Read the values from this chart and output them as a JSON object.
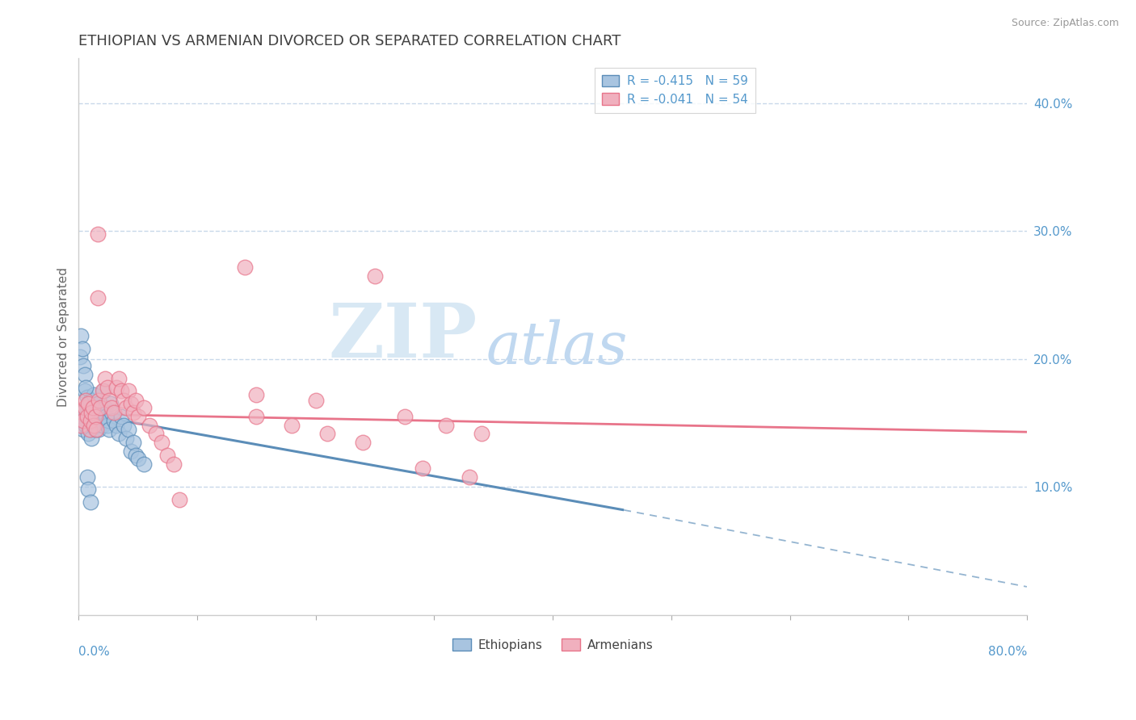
{
  "title": "ETHIOPIAN VS ARMENIAN DIVORCED OR SEPARATED CORRELATION CHART",
  "source": "Source: ZipAtlas.com",
  "ylabel": "Divorced or Separated",
  "watermark_zip": "ZIP",
  "watermark_atlas": "atlas",
  "xlim": [
    0.0,
    0.8
  ],
  "ylim": [
    0.0,
    0.435
  ],
  "yticks": [
    0.1,
    0.2,
    0.3,
    0.4
  ],
  "ytick_labels": [
    "10.0%",
    "20.0%",
    "30.0%",
    "40.0%"
  ],
  "xtick_labels": [
    "0.0%",
    "",
    "",
    "",
    "",
    "",
    "",
    "",
    "80.0%"
  ],
  "legend_r_labels": [
    "R = -0.415   N = 59",
    "R = -0.041   N = 54"
  ],
  "legend_scatter_labels": [
    "Ethiopians",
    "Armenians"
  ],
  "blue_color": "#5b8db8",
  "pink_color": "#e8748a",
  "blue_fill": "#a8c4e0",
  "pink_fill": "#f0b0be",
  "ethiopian_points": [
    [
      0.002,
      0.148
    ],
    [
      0.003,
      0.152
    ],
    [
      0.004,
      0.145
    ],
    [
      0.005,
      0.16
    ],
    [
      0.005,
      0.175
    ],
    [
      0.006,
      0.155
    ],
    [
      0.006,
      0.148
    ],
    [
      0.007,
      0.17
    ],
    [
      0.007,
      0.162
    ],
    [
      0.008,
      0.158
    ],
    [
      0.008,
      0.142
    ],
    [
      0.009,
      0.165
    ],
    [
      0.009,
      0.152
    ],
    [
      0.01,
      0.168
    ],
    [
      0.01,
      0.145
    ],
    [
      0.011,
      0.155
    ],
    [
      0.011,
      0.138
    ],
    [
      0.012,
      0.162
    ],
    [
      0.012,
      0.148
    ],
    [
      0.013,
      0.158
    ],
    [
      0.013,
      0.172
    ],
    [
      0.014,
      0.152
    ],
    [
      0.014,
      0.145
    ],
    [
      0.015,
      0.148
    ],
    [
      0.016,
      0.155
    ],
    [
      0.016,
      0.165
    ],
    [
      0.017,
      0.145
    ],
    [
      0.018,
      0.16
    ],
    [
      0.019,
      0.155
    ],
    [
      0.02,
      0.148
    ],
    [
      0.021,
      0.175
    ],
    [
      0.022,
      0.162
    ],
    [
      0.023,
      0.155
    ],
    [
      0.024,
      0.148
    ],
    [
      0.025,
      0.152
    ],
    [
      0.026,
      0.145
    ],
    [
      0.027,
      0.165
    ],
    [
      0.028,
      0.158
    ],
    [
      0.03,
      0.152
    ],
    [
      0.032,
      0.148
    ],
    [
      0.034,
      0.142
    ],
    [
      0.036,
      0.155
    ],
    [
      0.038,
      0.148
    ],
    [
      0.04,
      0.138
    ],
    [
      0.042,
      0.145
    ],
    [
      0.044,
      0.128
    ],
    [
      0.046,
      0.135
    ],
    [
      0.048,
      0.125
    ],
    [
      0.05,
      0.122
    ],
    [
      0.055,
      0.118
    ],
    [
      0.001,
      0.202
    ],
    [
      0.002,
      0.218
    ],
    [
      0.003,
      0.208
    ],
    [
      0.004,
      0.195
    ],
    [
      0.005,
      0.188
    ],
    [
      0.006,
      0.178
    ],
    [
      0.007,
      0.108
    ],
    [
      0.008,
      0.098
    ],
    [
      0.01,
      0.088
    ]
  ],
  "armenian_points": [
    [
      0.002,
      0.148
    ],
    [
      0.003,
      0.158
    ],
    [
      0.004,
      0.152
    ],
    [
      0.005,
      0.162
    ],
    [
      0.006,
      0.168
    ],
    [
      0.007,
      0.155
    ],
    [
      0.008,
      0.165
    ],
    [
      0.009,
      0.145
    ],
    [
      0.01,
      0.152
    ],
    [
      0.011,
      0.158
    ],
    [
      0.012,
      0.162
    ],
    [
      0.013,
      0.148
    ],
    [
      0.014,
      0.155
    ],
    [
      0.015,
      0.145
    ],
    [
      0.016,
      0.248
    ],
    [
      0.017,
      0.168
    ],
    [
      0.018,
      0.162
    ],
    [
      0.02,
      0.175
    ],
    [
      0.022,
      0.185
    ],
    [
      0.024,
      0.178
    ],
    [
      0.026,
      0.168
    ],
    [
      0.028,
      0.162
    ],
    [
      0.03,
      0.158
    ],
    [
      0.032,
      0.178
    ],
    [
      0.034,
      0.185
    ],
    [
      0.036,
      0.175
    ],
    [
      0.038,
      0.168
    ],
    [
      0.04,
      0.162
    ],
    [
      0.042,
      0.175
    ],
    [
      0.044,
      0.165
    ],
    [
      0.046,
      0.158
    ],
    [
      0.048,
      0.168
    ],
    [
      0.05,
      0.155
    ],
    [
      0.055,
      0.162
    ],
    [
      0.06,
      0.148
    ],
    [
      0.065,
      0.142
    ],
    [
      0.07,
      0.135
    ],
    [
      0.075,
      0.125
    ],
    [
      0.08,
      0.118
    ],
    [
      0.15,
      0.155
    ],
    [
      0.18,
      0.148
    ],
    [
      0.21,
      0.142
    ],
    [
      0.24,
      0.135
    ],
    [
      0.275,
      0.155
    ],
    [
      0.31,
      0.148
    ],
    [
      0.34,
      0.142
    ],
    [
      0.15,
      0.172
    ],
    [
      0.2,
      0.168
    ],
    [
      0.016,
      0.298
    ],
    [
      0.14,
      0.272
    ],
    [
      0.25,
      0.265
    ],
    [
      0.085,
      0.09
    ],
    [
      0.29,
      0.115
    ],
    [
      0.33,
      0.108
    ]
  ],
  "blue_line_solid": {
    "x": [
      0.0,
      0.46
    ],
    "y": [
      0.158,
      0.082
    ]
  },
  "blue_line_dashed": {
    "x": [
      0.46,
      0.8
    ],
    "y": [
      0.082,
      0.022
    ]
  },
  "pink_line": {
    "x": [
      0.0,
      0.8
    ],
    "y": [
      0.157,
      0.143
    ]
  },
  "background_color": "#ffffff",
  "grid_color": "#c8d8ea",
  "title_color": "#404040",
  "axis_label_color": "#5599cc",
  "title_fontsize": 13.0,
  "watermark_color_zip": "#d8e8f4",
  "watermark_color_atlas": "#c0d8f0",
  "source_color": "#999999"
}
